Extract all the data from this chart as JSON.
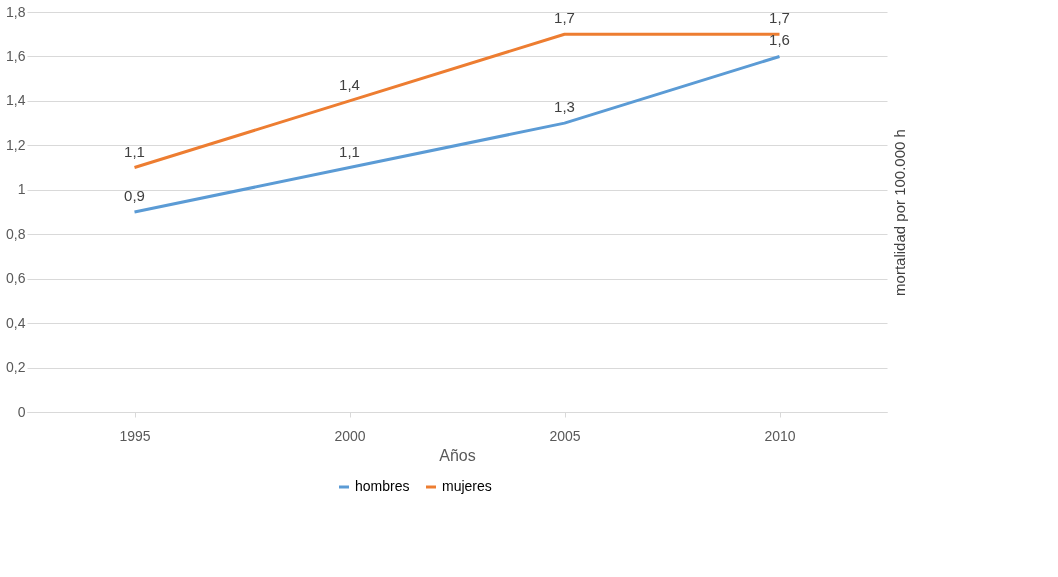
{
  "chart_data": {
    "type": "line",
    "xlabel": "Años",
    "ylabel": "mortalidad por 100.000 h",
    "categories": [
      "1995",
      "2000",
      "2005",
      "2010"
    ],
    "series": [
      {
        "name": "hombres",
        "color": "#5b9bd5",
        "values": [
          0.9,
          1.1,
          1.3,
          1.6
        ],
        "value_labels": [
          "0,9",
          "1,1",
          "1,3",
          "1,6"
        ]
      },
      {
        "name": "mujeres",
        "color": "#ed7d31",
        "values": [
          1.1,
          1.4,
          1.7,
          1.7
        ],
        "value_labels": [
          "1,1",
          "1,4",
          "1,7",
          "1,7"
        ]
      }
    ],
    "ylim": [
      0,
      1.8
    ],
    "yticks": [
      0,
      {
        "value": 0.2,
        "label": "0,2"
      },
      {
        "value": 0.4,
        "label": "0,4"
      },
      {
        "value": 0.6,
        "label": "0,6"
      },
      {
        "value": 0.8,
        "label": "0,8"
      },
      1,
      {
        "value": 1.2,
        "label": "1,2"
      },
      {
        "value": 1.4,
        "label": "1,4"
      },
      {
        "value": 1.6,
        "label": "1,6"
      },
      {
        "value": 1.8,
        "label": "1,8"
      }
    ],
    "grid": "y",
    "legend": "bottom",
    "marker": "none",
    "line_style": "solid"
  }
}
